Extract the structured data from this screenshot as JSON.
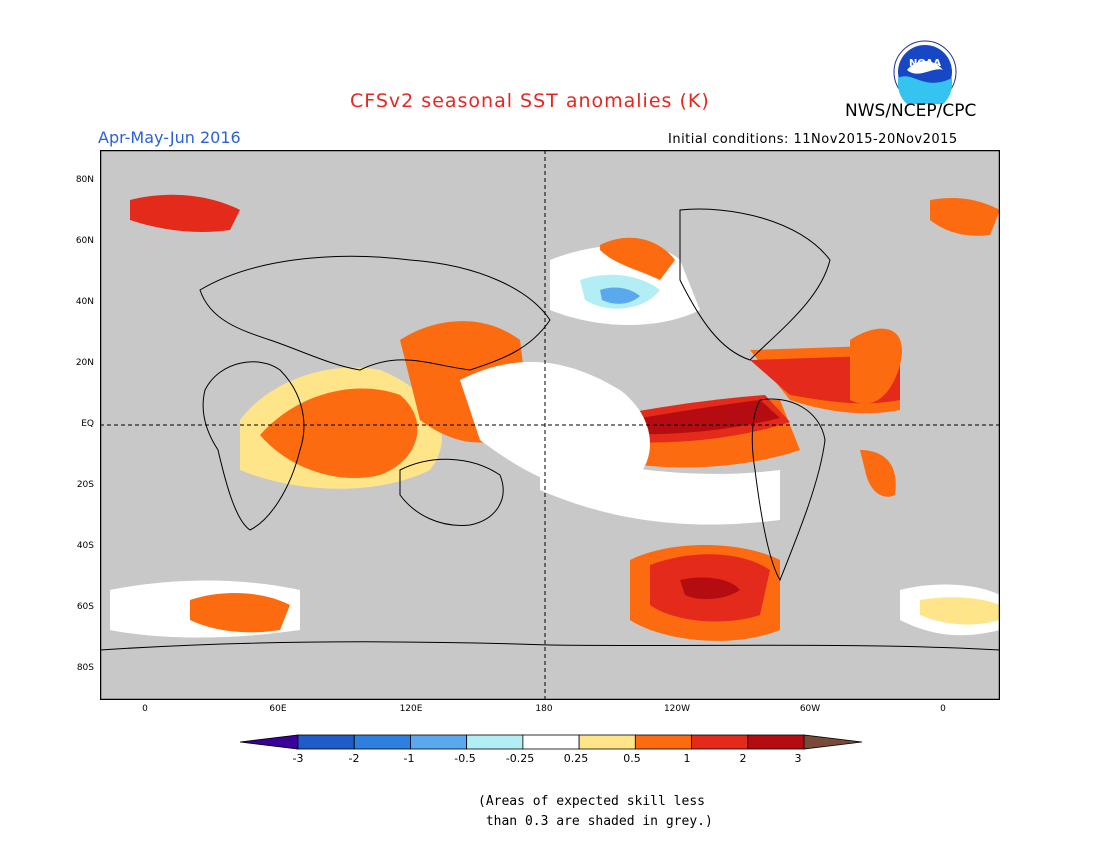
{
  "title": "CFSv2 seasonal SST anomalies (K)",
  "organization": "NWS/NCEP/CPC",
  "logo_text": "NOAA",
  "season": "Apr-May-Jun 2016",
  "initial_conditions": "Initial conditions: 11Nov2015-20Nov2015",
  "lat_labels": [
    "80N",
    "60N",
    "40N",
    "20N",
    "EQ",
    "20S",
    "40S",
    "60S",
    "80S"
  ],
  "lon_labels": [
    "0",
    "60E",
    "120E",
    "180",
    "120W",
    "60W",
    "0"
  ],
  "colorbar": {
    "labels": [
      "-3",
      "-2",
      "-1",
      "-0.5",
      "-0.25",
      "0.25",
      "0.5",
      "1",
      "2",
      "3"
    ],
    "colors": [
      "#3b009a",
      "#1f5bc9",
      "#2f7fe0",
      "#5aa8ee",
      "#b2eef4",
      "#ffffff",
      "#ffe58a",
      "#fd6b10",
      "#e42a1a",
      "#b50c12",
      "#7a4a38"
    ]
  },
  "note": "(Areas of expected skill less\n than 0.3 are shaded in grey.)",
  "colors": {
    "land": "#c8c8c8",
    "ocean_grey": "#c8c8c8",
    "title_red": "#e8261f",
    "season_blue": "#2b5fe0"
  }
}
